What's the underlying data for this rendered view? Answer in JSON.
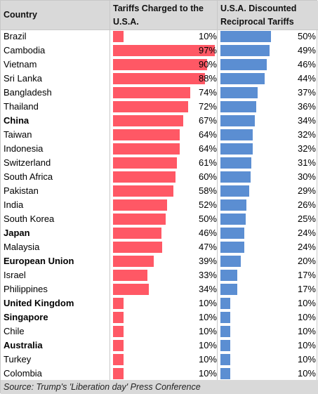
{
  "headers": {
    "country": "Country",
    "tariffs_charged": "Tariffs Charged to the U.S.A.",
    "discounted": "U.S.A. Discounted Reciprocal Tariffs"
  },
  "footer": "Source: Trump's 'Liberation day' Press Conference",
  "colors": {
    "charged_bar": "#ff5865",
    "discounted_bar": "#5b8ed2",
    "header_bg": "#d9d9d9"
  },
  "chart_data": {
    "type": "table",
    "columns": [
      "Country",
      "Tariffs Charged to the U.S.A.",
      "U.S.A. Discounted Reciprocal Tariffs"
    ],
    "rows": [
      {
        "country": "Brazil",
        "charged": 10,
        "discounted": 50,
        "bold": false
      },
      {
        "country": "Cambodia",
        "charged": 97,
        "discounted": 49,
        "bold": false
      },
      {
        "country": "Vietnam",
        "charged": 90,
        "discounted": 46,
        "bold": false
      },
      {
        "country": "Sri Lanka",
        "charged": 88,
        "discounted": 44,
        "bold": false
      },
      {
        "country": "Bangladesh",
        "charged": 74,
        "discounted": 37,
        "bold": false
      },
      {
        "country": "Thailand",
        "charged": 72,
        "discounted": 36,
        "bold": false
      },
      {
        "country": "China",
        "charged": 67,
        "discounted": 34,
        "bold": true
      },
      {
        "country": "Taiwan",
        "charged": 64,
        "discounted": 32,
        "bold": false
      },
      {
        "country": "Indonesia",
        "charged": 64,
        "discounted": 32,
        "bold": false
      },
      {
        "country": "Switzerland",
        "charged": 61,
        "discounted": 31,
        "bold": false
      },
      {
        "country": "South Africa",
        "charged": 60,
        "discounted": 30,
        "bold": false
      },
      {
        "country": "Pakistan",
        "charged": 58,
        "discounted": 29,
        "bold": false
      },
      {
        "country": "India",
        "charged": 52,
        "discounted": 26,
        "bold": false
      },
      {
        "country": "South Korea",
        "charged": 50,
        "discounted": 25,
        "bold": false
      },
      {
        "country": "Japan",
        "charged": 46,
        "discounted": 24,
        "bold": true
      },
      {
        "country": "Malaysia",
        "charged": 47,
        "discounted": 24,
        "bold": false
      },
      {
        "country": "European Union",
        "charged": 39,
        "discounted": 20,
        "bold": true
      },
      {
        "country": "Israel",
        "charged": 33,
        "discounted": 17,
        "bold": false
      },
      {
        "country": "Philippines",
        "charged": 34,
        "discounted": 17,
        "bold": false
      },
      {
        "country": "United Kingdom",
        "charged": 10,
        "discounted": 10,
        "bold": true
      },
      {
        "country": "Singapore",
        "charged": 10,
        "discounted": 10,
        "bold": true
      },
      {
        "country": "Chile",
        "charged": 10,
        "discounted": 10,
        "bold": false
      },
      {
        "country": "Australia",
        "charged": 10,
        "discounted": 10,
        "bold": true
      },
      {
        "country": "Turkey",
        "charged": 10,
        "discounted": 10,
        "bold": false
      },
      {
        "country": "Colombia",
        "charged": 10,
        "discounted": 10,
        "bold": false
      }
    ],
    "value_suffix": "%",
    "charged_range": [
      0,
      100
    ],
    "discounted_range": [
      0,
      50
    ]
  }
}
